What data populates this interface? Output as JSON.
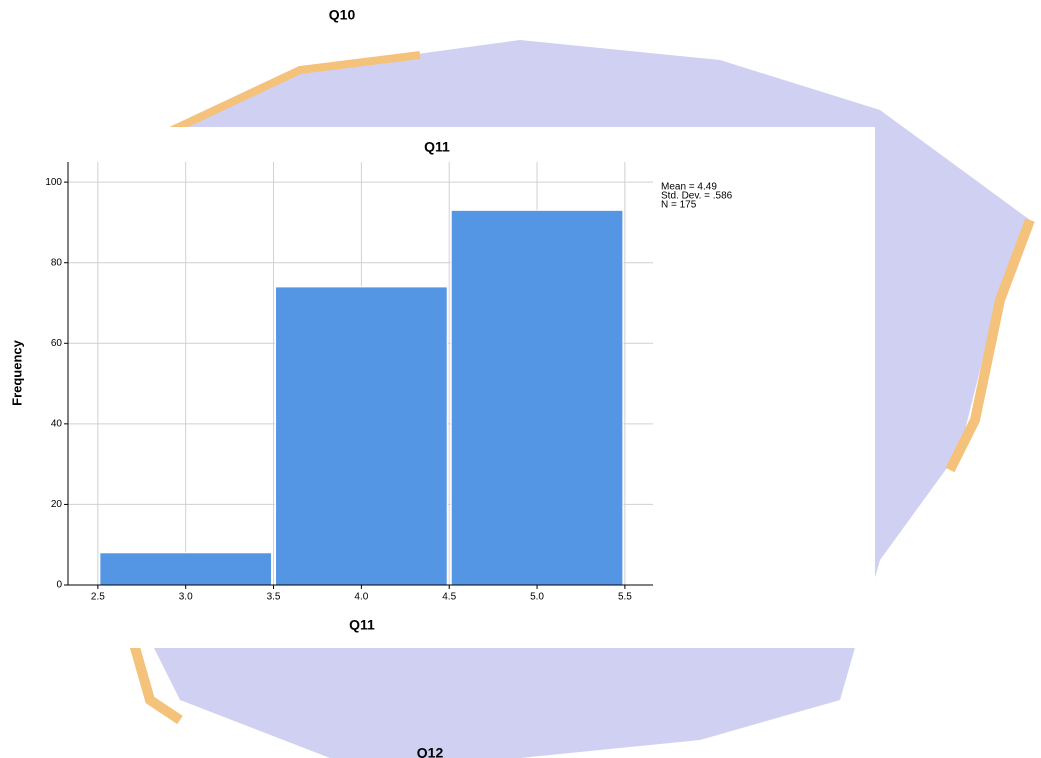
{
  "header": "Q10",
  "footer": "Q12",
  "chart_data": {
    "type": "histogram",
    "title": "Q11",
    "x_label": "Q11",
    "y_label": "Frequency",
    "bins": [
      2.5,
      3.5,
      4.5,
      5.5
    ],
    "values": [
      8,
      74,
      93
    ],
    "color": "#5596e4",
    "xlim": [
      2.33,
      5.66
    ],
    "ylim": [
      0,
      105
    ],
    "xticks": [
      2.5,
      {
        "value": 3,
        "label": "3.0"
      },
      3.5,
      {
        "value": 4,
        "label": "4.0"
      },
      4.5,
      {
        "value": 5,
        "label": "5.0"
      },
      5.5
    ],
    "yticks": [
      0,
      20,
      40,
      60,
      80,
      100
    ],
    "grid": true,
    "annotations": [
      "Mean = 4.49",
      "Std. Dev. = .586",
      "N = 175"
    ]
  }
}
